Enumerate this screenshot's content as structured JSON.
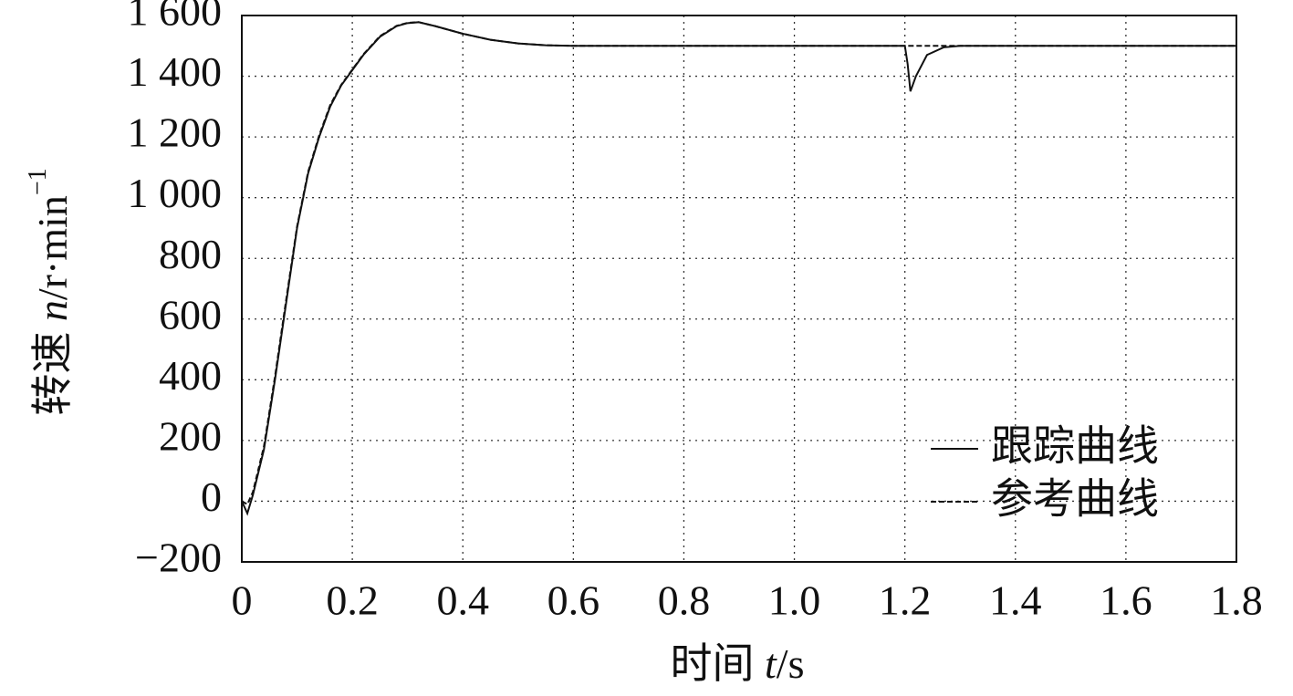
{
  "chart_data": {
    "type": "line",
    "x": [
      0,
      0.01,
      0.02,
      0.04,
      0.06,
      0.08,
      0.1,
      0.12,
      0.14,
      0.16,
      0.18,
      0.2,
      0.22,
      0.25,
      0.28,
      0.3,
      0.32,
      0.35,
      0.4,
      0.45,
      0.5,
      0.55,
      0.6,
      0.8,
      1.0,
      1.2,
      1.205,
      1.21,
      1.22,
      1.24,
      1.27,
      1.3,
      1.5,
      1.8
    ],
    "series": [
      {
        "name": "跟踪曲线",
        "color": "#111111",
        "dash": false,
        "values": [
          0,
          -40,
          20,
          170,
          400,
          650,
          900,
          1080,
          1200,
          1300,
          1370,
          1420,
          1470,
          1530,
          1565,
          1575,
          1578,
          1565,
          1540,
          1520,
          1508,
          1502,
          1500,
          1500,
          1500,
          1500,
          1440,
          1350,
          1400,
          1470,
          1495,
          1500,
          1500,
          1500
        ]
      },
      {
        "name": "参考曲线",
        "color": "#111111",
        "dash": true,
        "values": [
          0,
          -10,
          30,
          180,
          410,
          660,
          905,
          1085,
          1205,
          1305,
          1372,
          1422,
          1472,
          1532,
          1566,
          1576,
          1578,
          1565,
          1540,
          1520,
          1508,
          1502,
          1500,
          1500,
          1500,
          1500,
          1500,
          1500,
          1500,
          1500,
          1500,
          1500,
          1500,
          1500
        ]
      }
    ],
    "xlim": [
      0,
      1.8
    ],
    "xticks": [
      0,
      0.2,
      0.4,
      0.6,
      0.8,
      {
        "value": 1.0,
        "label": "1.0"
      },
      1.2,
      1.4,
      1.6,
      1.8
    ],
    "ylim": [
      -200,
      1600
    ],
    "yticks": [
      {
        "value": -200,
        "label": "−200"
      },
      0,
      200,
      400,
      600,
      800,
      {
        "value": 1000,
        "label": "1 000"
      },
      {
        "value": 1200,
        "label": "1 200"
      },
      {
        "value": 1400,
        "label": "1 400"
      },
      {
        "value": 1600,
        "label": "1 600"
      }
    ],
    "xlabel_parts": [
      "时间 ",
      "t",
      "/s"
    ],
    "ylabel_parts": [
      "转速 ",
      "n",
      "/r·min",
      "−1"
    ],
    "grid": true,
    "legend": "lower right"
  }
}
